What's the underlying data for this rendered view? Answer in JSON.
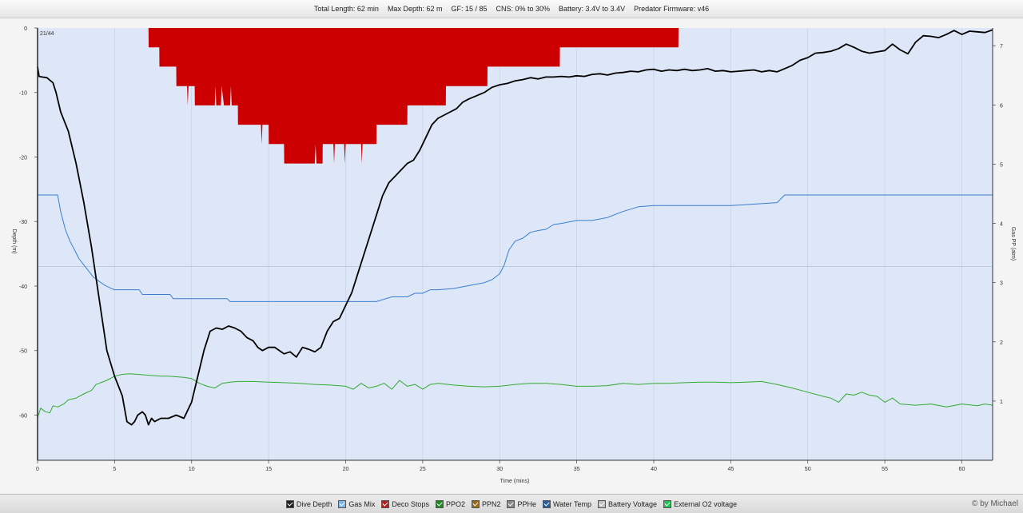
{
  "header": {
    "total_length": "Total Length: 62 min",
    "max_depth": "Max Depth: 62 m",
    "gf": "GF: 15 / 85",
    "cns": "CNS: 0% to 30%",
    "battery": "Battery: 3.4V to 3.4V",
    "firmware": "Predator Firmware: v46"
  },
  "chart_data": {
    "type": "line",
    "xlabel": "Time (mins)",
    "ylabel_left": "Depth (m)",
    "ylabel_right": "Gas PP (atm)",
    "corner_label": "21/44",
    "xlim": [
      0,
      62
    ],
    "ylim_left": [
      -67,
      0
    ],
    "ylim_right": [
      0,
      7.3
    ],
    "x_ticks": [
      0,
      5,
      10,
      15,
      20,
      25,
      30,
      35,
      40,
      45,
      50,
      55,
      60
    ],
    "y_ticks_left": [
      0,
      -10,
      -20,
      -30,
      -40,
      -50,
      -60
    ],
    "y_ticks_right": [
      1,
      2,
      3,
      4,
      5,
      6,
      7
    ],
    "grid": true,
    "legend_position": "bottom",
    "colors": {
      "plot_bg": "#dde7f7",
      "dive_depth": "#000000",
      "deco": "#cc0000",
      "ppo2": "#33aa33",
      "gas_mix": "#3a7fcf"
    },
    "series": [
      {
        "name": "Dive Depth",
        "x": [
          0,
          0.1,
          0.3,
          0.6,
          1.0,
          1.2,
          1.5,
          2.0,
          2.5,
          3.0,
          3.5,
          4.0,
          4.5,
          5.0,
          5.5,
          5.8,
          6.1,
          6.3,
          6.5,
          6.8,
          7.0,
          7.2,
          7.4,
          7.6,
          8.0,
          8.5,
          9.0,
          9.5,
          10.0,
          10.5,
          10.8,
          11.2,
          11.6,
          12.0,
          12.4,
          12.8,
          13.2,
          13.6,
          14.0,
          14.3,
          14.6,
          15.0,
          15.4,
          15.7,
          16.0,
          16.4,
          16.8,
          17.2,
          17.6,
          18.0,
          18.4,
          18.8,
          19.2,
          19.6,
          20.0,
          20.4,
          20.8,
          21.2,
          21.6,
          22.0,
          22.4,
          22.8,
          23.2,
          23.6,
          24.0,
          24.4,
          24.8,
          25.2,
          25.6,
          26.0,
          26.4,
          26.8,
          27.2,
          27.6,
          28.0,
          28.5,
          29.0,
          29.5,
          30.0,
          30.5,
          31.0,
          31.5,
          32.0,
          32.5,
          33.0,
          33.5,
          34.0,
          34.5,
          35.0,
          35.5,
          36.0,
          36.5,
          37.0,
          37.5,
          38.0,
          38.5,
          39.0,
          39.5,
          40.0,
          40.5,
          41.0,
          41.5,
          42.0,
          42.5,
          43.0,
          43.5,
          44.0,
          44.5,
          45.0,
          45.5,
          46.0,
          46.5,
          47.0,
          47.5,
          48.0,
          48.5,
          49.0,
          49.5,
          50.0,
          50.5,
          51.0,
          51.5,
          52.0,
          52.5,
          53.0,
          53.5,
          54.0,
          54.5,
          55.0,
          55.5,
          56.0,
          56.5,
          57.0,
          57.5,
          58.0,
          58.5,
          59.0,
          59.5,
          60.0,
          60.5,
          61.0,
          61.5,
          62.0
        ],
        "values": [
          -6,
          -7.5,
          -7.6,
          -7.7,
          -8.5,
          -10,
          -13,
          -16,
          -21,
          -27,
          -34,
          -42,
          -50,
          -54,
          -57,
          -61,
          -61.5,
          -61,
          -60,
          -59.5,
          -60,
          -61.5,
          -60.5,
          -61,
          -60.5,
          -60.5,
          -60,
          -60.5,
          -58,
          -53,
          -50,
          -47,
          -46.5,
          -46.7,
          -46.2,
          -46.5,
          -47,
          -48,
          -48.5,
          -49.5,
          -50,
          -49.5,
          -49.5,
          -50,
          -50.5,
          -50.2,
          -51,
          -49.5,
          -49.8,
          -50.2,
          -49.5,
          -47,
          -45.5,
          -45,
          -43,
          -41,
          -38,
          -35,
          -32,
          -29,
          -26,
          -24,
          -23,
          -22,
          -21,
          -20.5,
          -19,
          -17,
          -15,
          -14,
          -13.5,
          -13,
          -12.5,
          -11.5,
          -11,
          -10.5,
          -10,
          -9.2,
          -8.8,
          -8.6,
          -8.2,
          -8,
          -7.7,
          -7.9,
          -7.6,
          -7.6,
          -7.5,
          -7.6,
          -7.4,
          -7.5,
          -7.2,
          -7.1,
          -7.3,
          -7.0,
          -6.9,
          -6.7,
          -6.8,
          -6.5,
          -6.4,
          -6.7,
          -6.5,
          -6.6,
          -6.4,
          -6.6,
          -6.5,
          -6.3,
          -6.7,
          -6.6,
          -6.8,
          -6.7,
          -6.6,
          -6.5,
          -6.8,
          -6.6,
          -6.8,
          -6.3,
          -5.8,
          -5.0,
          -4.6,
          -3.9,
          -3.8,
          -3.6,
          -3.2,
          -2.5,
          -3.0,
          -3.6,
          -3.9,
          -3.7,
          -3.5,
          -2.5,
          -3.4,
          -4.0,
          -2.2,
          -1.2,
          -1.3,
          -1.5,
          -1.0,
          -0.4,
          -1.0,
          -0.5,
          -0.6,
          -0.7,
          -0.3
        ]
      },
      {
        "name": "Gas Mix",
        "x": [
          0,
          1.3,
          1.5,
          1.8,
          2.1,
          2.4,
          2.7,
          3.0,
          3.3,
          3.6,
          4.0,
          4.4,
          4.8,
          5.0,
          6.6,
          6.8,
          8.6,
          8.8,
          12.3,
          12.5,
          14.0,
          18.0,
          22.0,
          23.0,
          24.0,
          24.5,
          25.0,
          25.5,
          26.0,
          27.0,
          28.0,
          29.0,
          29.5,
          30.0,
          30.3,
          30.6,
          31.0,
          31.5,
          32.0,
          32.5,
          33.0,
          33.5,
          34.0,
          35.0,
          36.0,
          37.0,
          38.0,
          39.0,
          40.0,
          42.0,
          45.0,
          48.0,
          48.5,
          50.0,
          55.0,
          60.0,
          62.0
        ],
        "values": [
          4.48,
          4.48,
          4.2,
          3.9,
          3.7,
          3.55,
          3.4,
          3.3,
          3.2,
          3.1,
          3.02,
          2.95,
          2.9,
          2.88,
          2.88,
          2.8,
          2.8,
          2.73,
          2.73,
          2.68,
          2.68,
          2.68,
          2.68,
          2.76,
          2.76,
          2.82,
          2.82,
          2.88,
          2.88,
          2.9,
          2.95,
          3.0,
          3.05,
          3.15,
          3.3,
          3.55,
          3.7,
          3.75,
          3.85,
          3.88,
          3.9,
          3.98,
          4.0,
          4.05,
          4.05,
          4.1,
          4.2,
          4.28,
          4.3,
          4.3,
          4.3,
          4.35,
          4.48,
          4.48,
          4.48,
          4.48,
          4.48
        ]
      },
      {
        "name": "PPO2",
        "x": [
          0,
          0.2,
          0.5,
          0.8,
          1.0,
          1.3,
          1.7,
          2.0,
          2.5,
          3.0,
          3.5,
          3.8,
          4.0,
          4.5,
          5.0,
          5.5,
          6.0,
          6.5,
          7.0,
          7.5,
          8.0,
          8.5,
          9.0,
          9.5,
          10.0,
          10.5,
          11.0,
          11.5,
          12.0,
          12.5,
          13.0,
          14.0,
          15.0,
          16.0,
          17.0,
          18.0,
          19.0,
          20.0,
          20.5,
          21.0,
          21.5,
          22.0,
          22.5,
          23.0,
          23.5,
          24.0,
          24.5,
          25.0,
          25.5,
          26.0,
          27.0,
          28.0,
          29.0,
          30.0,
          31.0,
          32.0,
          33.0,
          34.0,
          35.0,
          36.0,
          37.0,
          38.0,
          39.0,
          40.0,
          41.0,
          42.0,
          43.0,
          44.0,
          45.0,
          46.0,
          47.0,
          48.0,
          49.0,
          50.0,
          51.0,
          51.5,
          52.0,
          52.5,
          53.0,
          53.5,
          54.0,
          54.5,
          55.0,
          55.5,
          56.0,
          57.0,
          58.0,
          59.0,
          60.0,
          61.0,
          61.5,
          62.0
        ],
        "values": [
          0.72,
          0.88,
          0.82,
          0.8,
          0.92,
          0.9,
          0.95,
          1.02,
          1.05,
          1.12,
          1.18,
          1.28,
          1.3,
          1.35,
          1.42,
          1.45,
          1.46,
          1.45,
          1.44,
          1.43,
          1.42,
          1.42,
          1.41,
          1.4,
          1.38,
          1.3,
          1.25,
          1.22,
          1.3,
          1.32,
          1.33,
          1.33,
          1.32,
          1.31,
          1.3,
          1.28,
          1.27,
          1.25,
          1.2,
          1.3,
          1.22,
          1.25,
          1.3,
          1.2,
          1.35,
          1.25,
          1.28,
          1.2,
          1.28,
          1.3,
          1.27,
          1.25,
          1.24,
          1.25,
          1.28,
          1.3,
          1.3,
          1.28,
          1.25,
          1.25,
          1.26,
          1.3,
          1.28,
          1.3,
          1.3,
          1.31,
          1.32,
          1.32,
          1.31,
          1.32,
          1.33,
          1.28,
          1.22,
          1.15,
          1.08,
          1.05,
          0.98,
          1.12,
          1.1,
          1.15,
          1.1,
          1.08,
          0.98,
          1.05,
          0.95,
          0.93,
          0.95,
          0.9,
          0.95,
          0.92,
          0.95,
          0.93
        ]
      }
    ],
    "deco_stops": {
      "name": "Deco Stops",
      "x": [
        0,
        7.2,
        7.21,
        7.9,
        7.91,
        9.0,
        9.01,
        9.7,
        9.75,
        9.8,
        10.2,
        10.21,
        11.5,
        11.55,
        11.6,
        11.9,
        11.95,
        12.1,
        12.5,
        12.55,
        12.6,
        13.0,
        13.01,
        14.5,
        14.55,
        14.6,
        15.0,
        15.01,
        16.0,
        16.01,
        18.0,
        18.05,
        18.1,
        18.5,
        18.51,
        19.2,
        19.25,
        19.3,
        19.9,
        19.95,
        20.0,
        21.0,
        21.05,
        21.1,
        22.0,
        22.01,
        24.0,
        24.01,
        26.5,
        26.51,
        29.2,
        29.21,
        33.9,
        33.91,
        41.6,
        41.61,
        62
      ],
      "values": [
        0,
        0,
        -3,
        -3,
        -6,
        -6,
        -9,
        -9,
        -12,
        -9,
        -9,
        -12,
        -12,
        -9,
        -12,
        -12,
        -9,
        -12,
        -12,
        -9,
        -12,
        -12,
        -15,
        -15,
        -18,
        -15,
        -15,
        -18,
        -18,
        -21,
        -21,
        -18,
        -21,
        -21,
        -18,
        -18,
        -21,
        -18,
        -18,
        -21,
        -18,
        -18,
        -21,
        -18,
        -18,
        -15,
        -15,
        -12,
        -12,
        -9,
        -9,
        -6,
        -6,
        -3,
        -3,
        0,
        0
      ]
    }
  },
  "legend": [
    {
      "label": "Dive Depth",
      "color": "#222222"
    },
    {
      "label": "Gas Mix",
      "color": "#7bb6e6"
    },
    {
      "label": "Deco Stops",
      "color": "#b22222"
    },
    {
      "label": "PPO2",
      "color": "#1e8a1e"
    },
    {
      "label": "PPN2",
      "color": "#9a6a1a"
    },
    {
      "label": "PPHe",
      "color": "#888888"
    },
    {
      "label": "Water Temp",
      "color": "#2a5d9a"
    },
    {
      "label": "Battery Voltage",
      "color": "#c0c0c0"
    },
    {
      "label": "External O2 voltage",
      "color": "#22c055"
    }
  ],
  "credit": "© by Michael"
}
